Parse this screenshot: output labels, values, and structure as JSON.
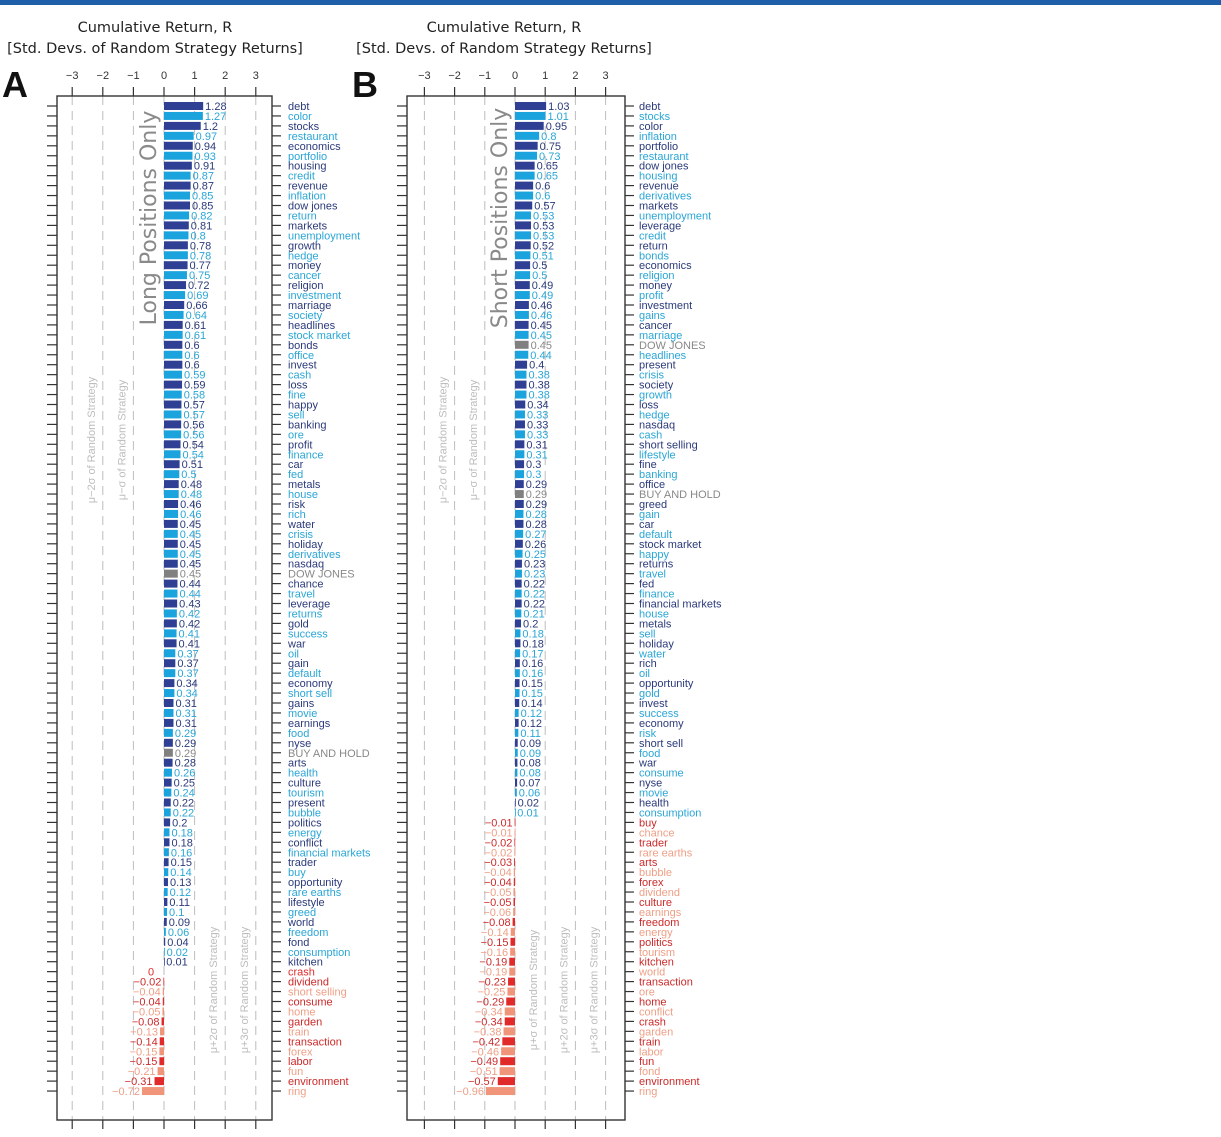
{
  "figure": {
    "top_rule_color": "#1f5ea8",
    "colors": {
      "positive_dark": "#2e3f94",
      "positive_light": "#1aa3dc",
      "negative_dark": "#e12b2b",
      "negative_light": "#f0957a",
      "benchmark": "#808080",
      "frame": "#333333",
      "grid": "#bdbdbd"
    }
  },
  "chart_data": [
    {
      "type": "bar",
      "orientation": "horizontal",
      "panel": "A",
      "title_line1": "Cumulative Return, R",
      "title_line2": "[Std. Devs. of Random Strategy Returns]",
      "inset_title": "Long Positions Only",
      "xlim": [
        -3.5,
        3.5
      ],
      "xticks": [
        -3,
        -2,
        -1,
        0,
        1,
        2,
        3
      ],
      "xtick_labels": [
        "−3",
        "−2",
        "−1",
        "0",
        "1",
        "2",
        "3"
      ],
      "grid": "dashed vertical at each integer",
      "reference_lines": [
        {
          "x": -2,
          "label": "μ−2σ of Random Strategy"
        },
        {
          "x": -1,
          "label": "μ−σ of Random Strategy"
        },
        {
          "x": 2,
          "label": "μ+2σ of Random Strategy"
        },
        {
          "x": 3,
          "label": "μ+3σ of Random Strategy"
        }
      ],
      "categories": [
        "debt",
        "color",
        "stocks",
        "restaurant",
        "economics",
        "portfolio",
        "housing",
        "credit",
        "revenue",
        "inflation",
        "dow jones",
        "return",
        "markets",
        "unemployment",
        "growth",
        "hedge",
        "money",
        "cancer",
        "religion",
        "investment",
        "marriage",
        "society",
        "headlines",
        "stock market",
        "bonds",
        "office",
        "invest",
        "cash",
        "loss",
        "fine",
        "happy",
        "sell",
        "banking",
        "ore",
        "profit",
        "finance",
        "car",
        "fed",
        "metals",
        "house",
        "risk",
        "rich",
        "water",
        "crisis",
        "holiday",
        "derivatives",
        "nasdaq",
        "DOW JONES",
        "chance",
        "travel",
        "leverage",
        "returns",
        "gold",
        "success",
        "war",
        "oil",
        "gain",
        "default",
        "economy",
        "short sell",
        "gains",
        "movie",
        "earnings",
        "food",
        "nyse",
        "BUY AND HOLD",
        "arts",
        "health",
        "culture",
        "tourism",
        "present",
        "bubble",
        "politics",
        "energy",
        "conflict",
        "financial markets",
        "trader",
        "buy",
        "opportunity",
        "rare earths",
        "lifestyle",
        "greed",
        "world",
        "freedom",
        "fond",
        "consumption",
        "kitchen",
        "crash",
        "dividend",
        "short selling",
        "consume",
        "home",
        "garden",
        "train",
        "transaction",
        "forex",
        "labor",
        "fun",
        "environment",
        "ring"
      ],
      "values": [
        1.28,
        1.27,
        1.2,
        0.97,
        0.94,
        0.93,
        0.91,
        0.87,
        0.87,
        0.85,
        0.85,
        0.82,
        0.81,
        0.8,
        0.78,
        0.78,
        0.77,
        0.75,
        0.72,
        0.69,
        0.66,
        0.64,
        0.61,
        0.61,
        0.6,
        0.6,
        0.6,
        0.59,
        0.59,
        0.58,
        0.57,
        0.57,
        0.56,
        0.56,
        0.54,
        0.54,
        0.51,
        0.5,
        0.48,
        0.48,
        0.46,
        0.46,
        0.45,
        0.45,
        0.45,
        0.45,
        0.45,
        0.45,
        0.44,
        0.44,
        0.43,
        0.42,
        0.42,
        0.41,
        0.41,
        0.37,
        0.37,
        0.37,
        0.34,
        0.34,
        0.31,
        0.31,
        0.31,
        0.29,
        0.29,
        0.29,
        0.28,
        0.26,
        0.25,
        0.24,
        0.22,
        0.22,
        0.2,
        0.18,
        0.18,
        0.16,
        0.15,
        0.14,
        0.13,
        0.12,
        0.11,
        0.1,
        0.09,
        0.06,
        0.04,
        0.02,
        0.01,
        0,
        -0.02,
        -0.04,
        -0.04,
        -0.05,
        -0.08,
        -0.13,
        -0.14,
        -0.15,
        -0.15,
        -0.21,
        -0.31,
        -0.72
      ],
      "value_labels": [
        "1.28",
        "1.27",
        "1.2",
        "0.97",
        "0.94",
        "0.93",
        "0.91",
        "0.87",
        "0.87",
        "0.85",
        "0.85",
        "0.82",
        "0.81",
        "0.8",
        "0.78",
        "0.78",
        "0.77",
        "0.75",
        "0.72",
        "0.69",
        "0.66",
        "0.64",
        "0.61",
        "0.61",
        "0.6",
        "0.6",
        "0.6",
        "0.59",
        "0.59",
        "0.58",
        "0.57",
        "0.57",
        "0.56",
        "0.56",
        "0.54",
        "0.54",
        "0.51",
        "0.5",
        "0.48",
        "0.48",
        "0.46",
        "0.46",
        "0.45",
        "0.45",
        "0.45",
        "0.45",
        "0.45",
        "0.45",
        "0.44",
        "0.44",
        "0.43",
        "0.42",
        "0.42",
        "0.41",
        "0.41",
        "0.37",
        "0.37",
        "0.37",
        "0.34",
        "0.34",
        "0.31",
        "0.31",
        "0.31",
        "0.29",
        "0.29",
        "0.29",
        "0.28",
        "0.26",
        "0.25",
        "0.24",
        "0.22",
        "0.22",
        "0.2",
        "0.18",
        "0.18",
        "0.16",
        "0.15",
        "0.14",
        "0.13",
        "0.12",
        "0.11",
        "0.1",
        "0.09",
        "0.06",
        "0.04",
        "0.02",
        "0.01",
        "0",
        "−0.02",
        "−0.04",
        "−0.04",
        "−0.05",
        "−0.08",
        "−0.13",
        "−0.14",
        "−0.15",
        "−0.15",
        "−0.21",
        "−0.31",
        "−0.72"
      ],
      "benchmarks": [
        "DOW JONES",
        "BUY AND HOLD"
      ]
    },
    {
      "type": "bar",
      "orientation": "horizontal",
      "panel": "B",
      "title_line1": "Cumulative Return, R",
      "title_line2": "[Std. Devs. of Random Strategy Returns]",
      "inset_title": "Short Positions Only",
      "xlim": [
        -3.5,
        3.5
      ],
      "xticks": [
        -3,
        -2,
        -1,
        0,
        1,
        2,
        3
      ],
      "xtick_labels": [
        "−3",
        "−2",
        "−1",
        "0",
        "1",
        "2",
        "3"
      ],
      "grid": "dashed vertical at each integer",
      "reference_lines": [
        {
          "x": -2,
          "label": "μ−2σ of Random Strategy"
        },
        {
          "x": -1,
          "label": "μ−σ of Random Strategy"
        },
        {
          "x": 1,
          "label": "μ+σ of Random Strategy"
        },
        {
          "x": 2,
          "label": "μ+2σ of Random Strategy"
        },
        {
          "x": 3,
          "label": "μ+3σ of Random Strategy"
        }
      ],
      "categories": [
        "debt",
        "stocks",
        "color",
        "inflation",
        "portfolio",
        "restaurant",
        "dow jones",
        "housing",
        "revenue",
        "derivatives",
        "markets",
        "unemployment",
        "leverage",
        "credit",
        "return",
        "bonds",
        "economics",
        "religion",
        "money",
        "profit",
        "investment",
        "gains",
        "cancer",
        "marriage",
        "DOW JONES",
        "headlines",
        "present",
        "crisis",
        "society",
        "growth",
        "loss",
        "hedge",
        "nasdaq",
        "cash",
        "short selling",
        "lifestyle",
        "fine",
        "banking",
        "office",
        "BUY AND HOLD",
        "greed",
        "gain",
        "car",
        "default",
        "stock market",
        "happy",
        "returns",
        "travel",
        "fed",
        "finance",
        "financial markets",
        "house",
        "metals",
        "sell",
        "holiday",
        "water",
        "rich",
        "oil",
        "opportunity",
        "gold",
        "invest",
        "success",
        "economy",
        "risk",
        "short sell",
        "food",
        "war",
        "consume",
        "nyse",
        "movie",
        "health",
        "consumption",
        "buy",
        "chance",
        "trader",
        "rare earths",
        "arts",
        "bubble",
        "forex",
        "dividend",
        "culture",
        "earnings",
        "freedom",
        "energy",
        "politics",
        "tourism",
        "kitchen",
        "world",
        "transaction",
        "ore",
        "home",
        "conflict",
        "crash",
        "garden",
        "train",
        "labor",
        "fun",
        "fond",
        "environment",
        "ring"
      ],
      "values": [
        1.03,
        1.01,
        0.95,
        0.8,
        0.75,
        0.73,
        0.65,
        0.65,
        0.6,
        0.6,
        0.57,
        0.53,
        0.53,
        0.53,
        0.52,
        0.51,
        0.5,
        0.5,
        0.49,
        0.49,
        0.46,
        0.46,
        0.45,
        0.45,
        0.45,
        0.44,
        0.4,
        0.38,
        0.38,
        0.38,
        0.34,
        0.33,
        0.33,
        0.33,
        0.31,
        0.31,
        0.3,
        0.3,
        0.29,
        0.29,
        0.29,
        0.28,
        0.28,
        0.27,
        0.26,
        0.25,
        0.23,
        0.23,
        0.22,
        0.22,
        0.22,
        0.21,
        0.2,
        0.18,
        0.18,
        0.17,
        0.16,
        0.16,
        0.15,
        0.15,
        0.14,
        0.12,
        0.12,
        0.11,
        0.09,
        0.09,
        0.08,
        0.08,
        0.07,
        0.06,
        0.02,
        0.01,
        -0.01,
        -0.01,
        -0.02,
        -0.02,
        -0.03,
        -0.04,
        -0.04,
        -0.05,
        -0.05,
        -0.06,
        -0.08,
        -0.14,
        -0.15,
        -0.16,
        -0.19,
        -0.19,
        -0.23,
        -0.25,
        -0.29,
        -0.34,
        -0.34,
        -0.38,
        -0.42,
        -0.46,
        -0.49,
        -0.51,
        -0.57,
        -0.96
      ],
      "value_labels": [
        "1.03",
        "1.01",
        "0.95",
        "0.8",
        "0.75",
        "0.73",
        "0.65",
        "0.65",
        "0.6",
        "0.6",
        "0.57",
        "0.53",
        "0.53",
        "0.53",
        "0.52",
        "0.51",
        "0.5",
        "0.5",
        "0.49",
        "0.49",
        "0.46",
        "0.46",
        "0.45",
        "0.45",
        "0.45",
        "0.44",
        "0.4",
        "0.38",
        "0.38",
        "0.38",
        "0.34",
        "0.33",
        "0.33",
        "0.33",
        "0.31",
        "0.31",
        "0.3",
        "0.3",
        "0.29",
        "0.29",
        "0.29",
        "0.28",
        "0.28",
        "0.27",
        "0.26",
        "0.25",
        "0.23",
        "0.23",
        "0.22",
        "0.22",
        "0.22",
        "0.21",
        "0.2",
        "0.18",
        "0.18",
        "0.17",
        "0.16",
        "0.16",
        "0.15",
        "0.15",
        "0.14",
        "0.12",
        "0.12",
        "0.11",
        "0.09",
        "0.09",
        "0.08",
        "0.08",
        "0.07",
        "0.06",
        "0.02",
        "0.01",
        "−0.01",
        "−0.01",
        "−0.02",
        "−0.02",
        "−0.03",
        "−0.04",
        "−0.04",
        "−0.05",
        "−0.05",
        "−0.06",
        "−0.08",
        "−0.14",
        "−0.15",
        "−0.16",
        "−0.19",
        "−0.19",
        "−0.23",
        "−0.25",
        "−0.29",
        "−0.34",
        "−0.34",
        "−0.38",
        "−0.42",
        "−0.46",
        "−0.49",
        "−0.51",
        "−0.57",
        "−0.96"
      ],
      "benchmarks": [
        "DOW JONES",
        "BUY AND HOLD"
      ]
    }
  ]
}
